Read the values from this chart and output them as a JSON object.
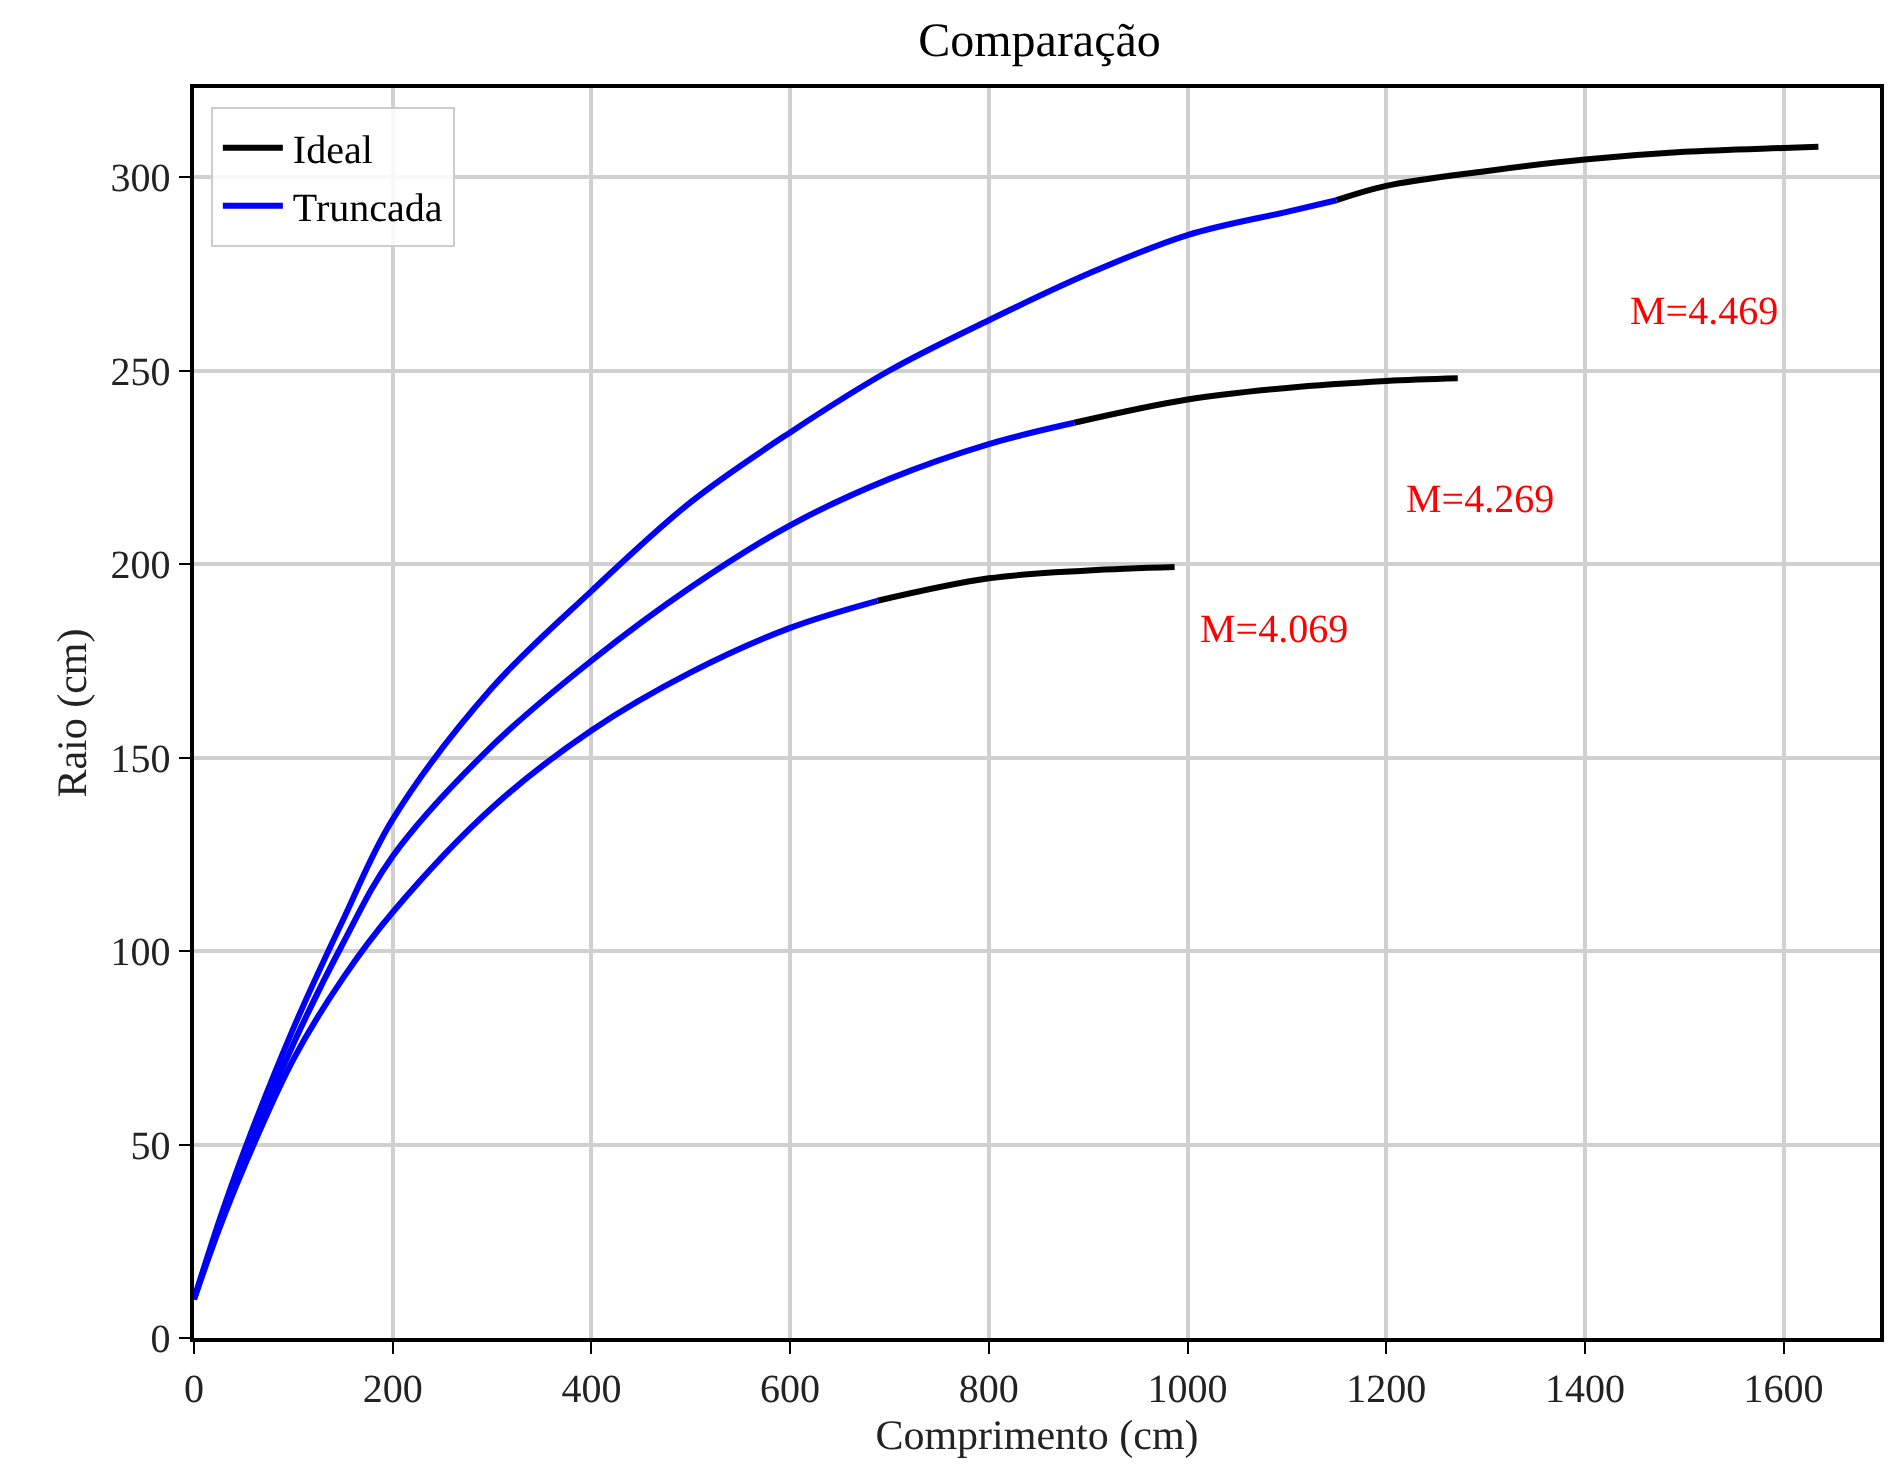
{
  "chart_data": {
    "type": "line",
    "title": "Comparação",
    "xlabel": "Comprimento (cm)",
    "ylabel": "Raio (cm)",
    "xlim": [
      0,
      1697
    ],
    "ylim": [
      0,
      323
    ],
    "xticks": [
      0,
      200,
      400,
      600,
      800,
      1000,
      1200,
      1400,
      1600
    ],
    "yticks": [
      0,
      50,
      100,
      150,
      200,
      250,
      300
    ],
    "grid": true,
    "legend": "top left",
    "line_style": "solid",
    "marker": "none",
    "series": [
      {
        "name": "Ideal",
        "color": "#000000",
        "x": [
          688,
          800,
          900,
          987
        ],
        "values": [
          190.5,
          196.3,
          198.3,
          199.2
        ]
      },
      {
        "color": "#000000",
        "x": [
          886,
          1000,
          1100,
          1200,
          1272
        ],
        "values": [
          236.5,
          242.5,
          245.5,
          247.3,
          248
        ]
      },
      {
        "color": "#000000",
        "x": [
          1150,
          1200,
          1300,
          1400,
          1500,
          1600,
          1635
        ],
        "values": [
          294,
          297.7,
          301.5,
          304.5,
          306.5,
          307.5,
          307.8
        ]
      },
      {
        "name": "Truncada",
        "color": "#0000ff",
        "x": [
          0,
          25,
          50,
          100,
          150,
          200,
          300,
          400,
          500,
          600,
          688
        ],
        "values": [
          10,
          28,
          44,
          72,
          93,
          110,
          137,
          157,
          172,
          183.5,
          190.5
        ]
      },
      {
        "color": "#0000ff",
        "x": [
          0,
          25,
          50,
          100,
          150,
          200,
          300,
          400,
          500,
          600,
          700,
          800,
          886
        ],
        "values": [
          10,
          29,
          46,
          76,
          102,
          124.5,
          153,
          175,
          194,
          210,
          222,
          231,
          236.5
        ]
      },
      {
        "color": "#0000ff",
        "x": [
          0,
          25,
          50,
          100,
          150,
          200,
          300,
          400,
          500,
          600,
          700,
          800,
          900,
          1000,
          1100,
          1150
        ],
        "values": [
          10,
          30,
          48,
          80,
          108,
          134,
          168,
          193,
          216,
          234,
          250,
          263,
          275,
          285,
          291,
          294
        ]
      }
    ],
    "annotations": [
      "M=4.069",
      "M=4.269",
      "M=4.469"
    ]
  }
}
